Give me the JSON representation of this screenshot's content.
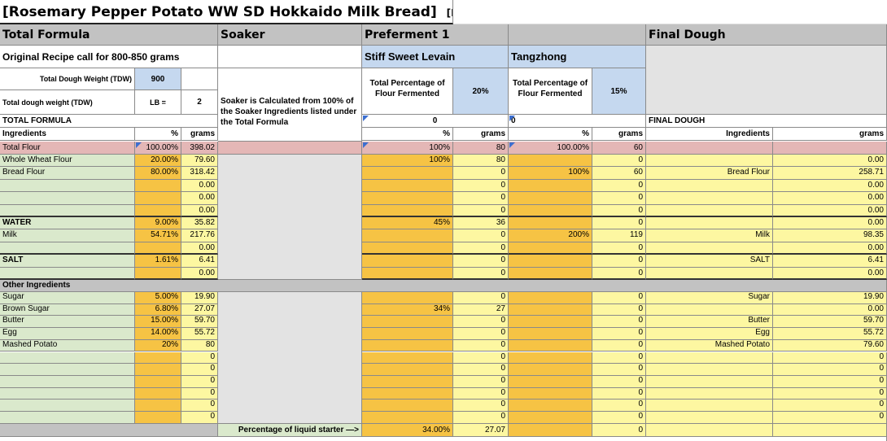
{
  "title": "[Rosemary Pepper Potato WW SD Hokkaido Milk Bread]",
  "author": "[BChang]",
  "sections": {
    "total_formula": "Total Formula",
    "soaker": "Soaker",
    "preferment1": "Preferment 1",
    "final_dough": "Final Dough"
  },
  "subheaders": {
    "original_recipe": "Original Recipe call for 800-850 grams",
    "levain": "Stiff Sweet Levain",
    "tangzhong": "Tangzhong"
  },
  "tdw": {
    "label": "Total Dough Weight (TDW)",
    "value": "900",
    "lb_label": "Total dough weight (TDW)",
    "lb_unit": "LB =",
    "lb_value": "2"
  },
  "soaker_note": "Soaker is Calculated from 100% of the Soaker Ingredients listed under the Total Formula",
  "preferment_pct": {
    "label": "Total Percentage of Flour Fermented",
    "levain_value": "20%",
    "tangzhong_value": "15%",
    "levain_zero": "0",
    "tangzhong_zero": "0"
  },
  "labels": {
    "total_formula": "TOTAL FORMULA",
    "final_dough": "FINAL DOUGH",
    "ingredients": "Ingredients",
    "pct": "%",
    "grams": "grams",
    "total_flour": "Total Flour",
    "other_ingredients": "Other Ingredients",
    "liquid_starter": "Percentage of liquid starter —>"
  },
  "total_flour": {
    "pct": "100.00%",
    "grams": "398.02",
    "lev_pct": "100%",
    "lev_g": "80",
    "tz_pct": "100.00%",
    "tz_g": "60"
  },
  "rows": [
    {
      "name": "Whole Wheat Flour",
      "pct": "20.00%",
      "g": "79.60",
      "lp": "100%",
      "lg": "80",
      "tp": "",
      "tg": "0",
      "fn": "",
      "fg": "0.00"
    },
    {
      "name": "Bread Flour",
      "pct": "80.00%",
      "g": "318.42",
      "lp": "",
      "lg": "0",
      "tp": "100%",
      "tg": "60",
      "fn": "Bread Flour",
      "fg": "258.71"
    },
    {
      "name": "",
      "pct": "",
      "g": "0.00",
      "lp": "",
      "lg": "0",
      "tp": "",
      "tg": "0",
      "fn": "",
      "fg": "0.00"
    },
    {
      "name": "",
      "pct": "",
      "g": "0.00",
      "lp": "",
      "lg": "0",
      "tp": "",
      "tg": "0",
      "fn": "",
      "fg": "0.00"
    },
    {
      "name": "",
      "pct": "",
      "g": "0.00",
      "lp": "",
      "lg": "0",
      "tp": "",
      "tg": "0",
      "fn": "",
      "fg": "0.00"
    },
    {
      "name": "WATER",
      "pct": "9.00%",
      "g": "35.82",
      "lp": "45%",
      "lg": "36",
      "tp": "",
      "tg": "0",
      "fn": "",
      "fg": "0.00"
    },
    {
      "name": "Milk",
      "pct": "54.71%",
      "g": "217.76",
      "lp": "",
      "lg": "0",
      "tp": "200%",
      "tg": "119",
      "fn": "Milk",
      "fg": "98.35"
    },
    {
      "name": "",
      "pct": "",
      "g": "0.00",
      "lp": "",
      "lg": "0",
      "tp": "",
      "tg": "0",
      "fn": "",
      "fg": "0.00"
    },
    {
      "name": "SALT",
      "pct": "1.61%",
      "g": "6.41",
      "lp": "",
      "lg": "0",
      "tp": "",
      "tg": "0",
      "fn": "SALT",
      "fg": "6.41"
    },
    {
      "name": "",
      "pct": "",
      "g": "0.00",
      "lp": "",
      "lg": "0",
      "tp": "",
      "tg": "0",
      "fn": "",
      "fg": "0.00"
    }
  ],
  "other_rows": [
    {
      "name": "Sugar",
      "pct": "5.00%",
      "g": "19.90",
      "lp": "",
      "lg": "0",
      "tp": "",
      "tg": "0",
      "fn": "Sugar",
      "fg": "19.90"
    },
    {
      "name": "Brown Sugar",
      "pct": "6.80%",
      "g": "27.07",
      "lp": "34%",
      "lg": "27",
      "tp": "",
      "tg": "0",
      "fn": "",
      "fg": "0.00"
    },
    {
      "name": "Butter",
      "pct": "15.00%",
      "g": "59.70",
      "lp": "",
      "lg": "0",
      "tp": "",
      "tg": "0",
      "fn": "Butter",
      "fg": "59.70"
    },
    {
      "name": "Egg",
      "pct": "14.00%",
      "g": "55.72",
      "lp": "",
      "lg": "0",
      "tp": "",
      "tg": "0",
      "fn": "Egg",
      "fg": "55.72"
    },
    {
      "name": "Mashed Potato",
      "pct": "20%",
      "g": "80",
      "lp": "",
      "lg": "0",
      "tp": "",
      "tg": "0",
      "fn": "Mashed Potato",
      "fg": "79.60"
    },
    {
      "name": "",
      "pct": "",
      "g": "0",
      "lp": "",
      "lg": "0",
      "tp": "",
      "tg": "0",
      "fn": "",
      "fg": "0"
    },
    {
      "name": "",
      "pct": "",
      "g": "0",
      "lp": "",
      "lg": "0",
      "tp": "",
      "tg": "0",
      "fn": "",
      "fg": "0"
    },
    {
      "name": "",
      "pct": "",
      "g": "0",
      "lp": "",
      "lg": "0",
      "tp": "",
      "tg": "0",
      "fn": "",
      "fg": "0"
    },
    {
      "name": "",
      "pct": "",
      "g": "0",
      "lp": "",
      "lg": "0",
      "tp": "",
      "tg": "0",
      "fn": "",
      "fg": "0"
    },
    {
      "name": "",
      "pct": "",
      "g": "0",
      "lp": "",
      "lg": "0",
      "tp": "",
      "tg": "0",
      "fn": "",
      "fg": "0"
    },
    {
      "name": "",
      "pct": "",
      "g": "0",
      "lp": "",
      "lg": "0",
      "tp": "",
      "tg": "0",
      "fn": "",
      "fg": "0"
    }
  ],
  "liquid_starter": {
    "pct": "34.00%",
    "g": "27.07",
    "tg": "0"
  }
}
